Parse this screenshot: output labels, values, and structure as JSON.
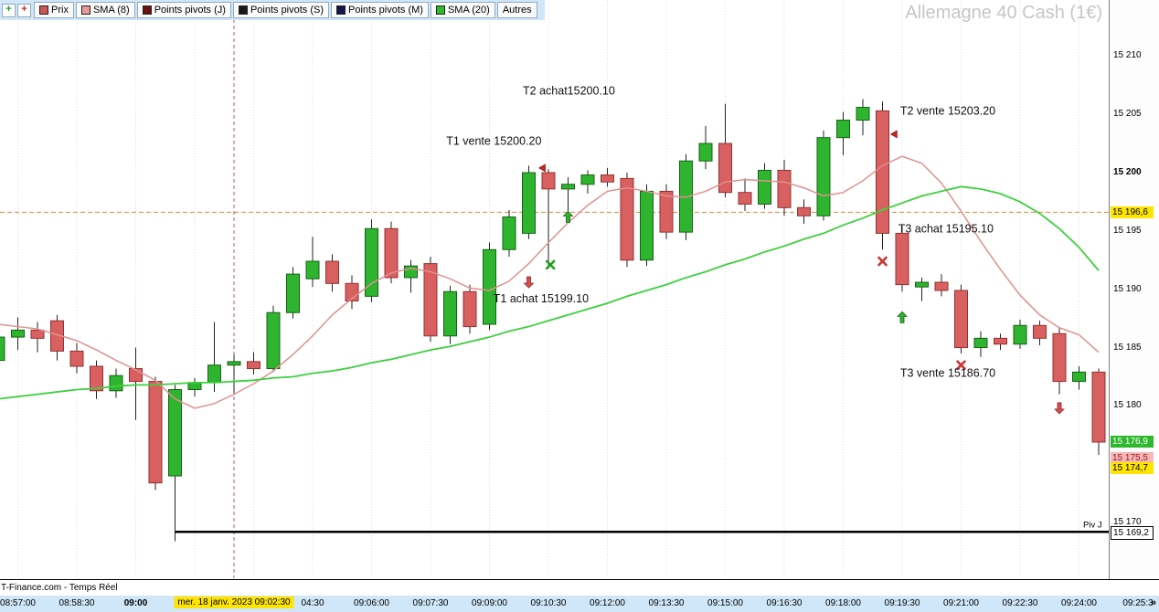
{
  "header": {
    "title": "Allemagne 40 Cash (1€)"
  },
  "toolbar": {
    "order_icons": [
      {
        "name": "buy-order-icon",
        "glyph": "+",
        "color": "#18a018"
      },
      {
        "name": "sell-order-icon",
        "glyph": "+",
        "color": "#cc2222"
      }
    ],
    "buttons": [
      {
        "label": "Prix",
        "swatch": "#cc5555"
      },
      {
        "label": "SMA (8)",
        "swatch": "#e79a9a"
      },
      {
        "label": "Points pivots (J)",
        "swatch": "#6b1111"
      },
      {
        "label": "Points pivots (S)",
        "swatch": "#1a1a1a"
      },
      {
        "label": "Points pivots (M)",
        "swatch": "#15154d"
      },
      {
        "label": "SMA (20)",
        "swatch": "#2dbb2d"
      },
      {
        "label": "Autres",
        "swatch": null
      }
    ]
  },
  "status_bar": {
    "text": "T-Finance.com - Temps Réel"
  },
  "time_axis": {
    "more": "»"
  },
  "colors": {
    "up": "#2eb42e",
    "up_border": "#156315",
    "down": "#d96060",
    "down_border": "#943030",
    "wick": "#222222",
    "sma8": "#e09090",
    "sma20": "#3ecf3e",
    "grid": "#dcdcdc",
    "cursor_line": "#cc5555",
    "level_line": "#dd8833",
    "pivot_line": "#000000",
    "axis_blue": "#cfe7f8",
    "highlight_yellow": "#ffe400"
  },
  "chart_data": {
    "type": "candlestick",
    "instrument": "Allemagne 40 Cash (1€)",
    "candle_interval": "00:00:30",
    "y_axis": {
      "visible_range": [
        15165.2,
        15214.8
      ]
    },
    "candles": [
      [
        "08:56:30",
        15183.9,
        15186.6,
        15183.3,
        15185.9
      ],
      [
        "08:57:00",
        15185.9,
        15187.6,
        15184.8,
        15186.5
      ],
      [
        "08:57:30",
        15186.5,
        15187.2,
        15184.6,
        15185.8
      ],
      [
        "08:58:00",
        15187.3,
        15187.8,
        15183.9,
        15184.7
      ],
      [
        "08:58:30",
        15184.7,
        15185.4,
        15182.8,
        15183.4
      ],
      [
        "08:59:00",
        15183.4,
        15183.9,
        15180.6,
        15181.3
      ],
      [
        "08:59:30",
        15181.3,
        15183.2,
        15180.7,
        15182.6
      ],
      [
        "09:00:00",
        15183.2,
        15185.0,
        15178.8,
        15182.1
      ],
      [
        "09:00:30",
        15182.1,
        15182.5,
        15172.8,
        15173.4
      ],
      [
        "09:01:00",
        15174.0,
        15181.8,
        15168.4,
        15181.4
      ],
      [
        "09:01:30",
        15181.4,
        15182.4,
        15180.8,
        15182.0
      ],
      [
        "09:02:00",
        15182.0,
        15187.2,
        15181.2,
        15183.5
      ],
      [
        "09:02:30",
        15183.5,
        15184.4,
        15181.1,
        15183.8
      ],
      [
        "09:03:00",
        15183.8,
        15184.6,
        15182.7,
        15183.2
      ],
      [
        "09:03:30",
        15183.2,
        15188.6,
        15182.9,
        15188.0
      ],
      [
        "09:04:00",
        15188.0,
        15191.9,
        15187.5,
        15191.3
      ],
      [
        "09:04:30",
        15190.9,
        15194.5,
        15190.2,
        15192.4
      ],
      [
        "09:05:00",
        15192.4,
        15193.0,
        15189.8,
        15190.5
      ],
      [
        "09:05:30",
        15190.5,
        15191.2,
        15188.3,
        15189.0
      ],
      [
        "09:06:00",
        15189.4,
        15196.0,
        15188.9,
        15195.2
      ],
      [
        "09:06:30",
        15195.2,
        15195.8,
        15190.5,
        15191.0
      ],
      [
        "09:07:00",
        15191.0,
        15192.5,
        15189.7,
        15192.0
      ],
      [
        "09:07:30",
        15192.2,
        15192.8,
        15185.5,
        15186.0
      ],
      [
        "09:08:00",
        15186.0,
        15190.3,
        15185.3,
        15189.8
      ],
      [
        "09:08:30",
        15189.8,
        15190.4,
        15186.2,
        15186.8
      ],
      [
        "09:09:00",
        15187.0,
        15194.0,
        15186.5,
        15193.4
      ],
      [
        "09:09:30",
        15193.4,
        15196.8,
        15192.8,
        15196.2
      ],
      [
        "09:10:00",
        15194.8,
        15200.6,
        15194.3,
        15200.0
      ],
      [
        "09:10:30",
        15200.0,
        15200.3,
        15191.8,
        15198.6
      ],
      [
        "09:11:00",
        15198.6,
        15199.6,
        15195.9,
        15199.0
      ],
      [
        "09:11:30",
        15199.0,
        15200.2,
        15198.2,
        15199.8
      ],
      [
        "09:12:00",
        15199.8,
        15200.4,
        15198.8,
        15199.2
      ],
      [
        "09:12:30",
        15199.5,
        15200.0,
        15191.9,
        15192.5
      ],
      [
        "09:13:00",
        15192.5,
        15199.0,
        15192.0,
        15198.4
      ],
      [
        "09:13:30",
        15198.4,
        15199.0,
        15194.3,
        15194.9
      ],
      [
        "09:14:00",
        15194.9,
        15201.6,
        15194.2,
        15201.0
      ],
      [
        "09:14:30",
        15201.0,
        15204.0,
        15200.3,
        15202.5
      ],
      [
        "09:15:00",
        15202.5,
        15205.9,
        15197.9,
        15198.3
      ],
      [
        "09:15:30",
        15198.3,
        15199.5,
        15196.7,
        15197.3
      ],
      [
        "09:16:00",
        15197.3,
        15200.8,
        15196.9,
        15200.2
      ],
      [
        "09:16:30",
        15200.2,
        15201.1,
        15196.3,
        15197.0
      ],
      [
        "09:17:00",
        15197.0,
        15197.7,
        15195.6,
        15196.3
      ],
      [
        "09:17:30",
        15196.3,
        15203.6,
        15195.9,
        15203.0
      ],
      [
        "09:18:00",
        15203.0,
        15205.2,
        15201.5,
        15204.5
      ],
      [
        "09:18:30",
        15204.5,
        15206.3,
        15203.2,
        15205.6
      ],
      [
        "09:19:00",
        15205.3,
        15206.1,
        15193.4,
        15194.8
      ],
      [
        "09:19:30",
        15194.8,
        15195.4,
        15189.8,
        15190.4
      ],
      [
        "09:20:00",
        15190.2,
        15191.0,
        15189.0,
        15190.6
      ],
      [
        "09:20:30",
        15190.6,
        15191.3,
        15189.4,
        15189.9
      ],
      [
        "09:21:00",
        15189.9,
        15190.4,
        15184.5,
        15185.0
      ],
      [
        "09:21:30",
        15185.0,
        15186.4,
        15184.2,
        15185.8
      ],
      [
        "09:22:00",
        15185.8,
        15186.2,
        15184.8,
        15185.3
      ],
      [
        "09:22:30",
        15185.3,
        15187.4,
        15184.9,
        15186.9
      ],
      [
        "09:23:00",
        15186.9,
        15187.3,
        15185.2,
        15185.8
      ],
      [
        "09:23:30",
        15186.2,
        15186.7,
        15181.0,
        15182.1
      ],
      [
        "09:24:00",
        15182.1,
        15183.4,
        15181.4,
        15182.9
      ],
      [
        "09:24:30",
        15182.9,
        15183.2,
        15175.8,
        15176.9
      ]
    ],
    "sma8": [
      15187.0,
      15186.8,
      15186.6,
      15186.1,
      15185.6,
      15184.8,
      15183.9,
      15183.1,
      15182.2,
      15180.6,
      15179.8,
      15180.2,
      15181.0,
      15181.9,
      15183.0,
      15184.4,
      15186.0,
      15187.8,
      15189.2,
      15190.5,
      15191.4,
      15191.8,
      15191.5,
      15190.9,
      15190.1,
      15189.9,
      15190.7,
      15192.2,
      15194.0,
      15195.7,
      15197.2,
      15198.4,
      15198.7,
      15198.4,
      15198.0,
      15197.9,
      15198.4,
      15199.2,
      15199.4,
      15199.3,
      15199.2,
      15198.7,
      15198.0,
      15198.3,
      15199.3,
      15200.6,
      15201.4,
      15200.8,
      15199.1,
      15196.7,
      15194.1,
      15191.7,
      15189.5,
      15187.8,
      15186.7,
      15186.1,
      15184.6
    ],
    "sma20": [
      15180.6,
      15180.8,
      15181.0,
      15181.2,
      15181.4,
      15181.5,
      15181.7,
      15181.8,
      15181.8,
      15181.9,
      15182.0,
      15182.0,
      15182.1,
      15182.2,
      15182.4,
      15182.5,
      15182.8,
      15183.0,
      15183.3,
      15183.7,
      15184.0,
      15184.4,
      15184.8,
      15185.1,
      15185.5,
      15185.9,
      15186.4,
      15186.8,
      15187.3,
      15187.8,
      15188.3,
      15188.8,
      15189.4,
      15189.9,
      15190.4,
      15191.0,
      15191.5,
      15192.1,
      15192.6,
      15193.2,
      15193.7,
      15194.3,
      15194.8,
      15195.5,
      15196.1,
      15196.8,
      15197.4,
      15198.0,
      15198.4,
      15198.8,
      15198.6,
      15198.2,
      15197.5,
      15196.5,
      15195.2,
      15193.6,
      15191.6
    ],
    "annotations": [
      {
        "text": "T2 achat15200.10",
        "idx": 26.7,
        "price": 15207.0
      },
      {
        "text": "T1 vente 15200.20",
        "idx": 22.8,
        "price": 15202.7
      },
      {
        "text": "T1 achat 15199.10",
        "idx": 25.2,
        "price": 15189.2
      },
      {
        "text": "T2 vente 15203.20",
        "idx": 45.9,
        "price": 15205.3
      },
      {
        "text": "T3 achat 15195.10",
        "idx": 45.8,
        "price": 15195.2
      },
      {
        "text": "T3 vente 15186.70",
        "idx": 45.9,
        "price": 15182.8
      }
    ],
    "markers": [
      {
        "type": "triangle-left",
        "color": "#cc2222",
        "stroke": "#7a1010",
        "idx": 27.7,
        "price": 15200.4
      },
      {
        "type": "arrow-down",
        "color": "#d05050",
        "stroke": "#9c2424",
        "idx": 27.0,
        "price": 15190.6
      },
      {
        "type": "x",
        "color": "#1f9e1f",
        "stroke": "#1f9e1f",
        "idx": 28.1,
        "price": 15192.1
      },
      {
        "type": "arrow-up",
        "color": "#2eb42e",
        "stroke": "#135f13",
        "idx": 29.0,
        "price": 15196.2
      },
      {
        "type": "triangle-left",
        "color": "#cc2222",
        "stroke": "#7a1010",
        "idx": 45.6,
        "price": 15203.3
      },
      {
        "type": "x",
        "color": "#cc3333",
        "stroke": "#cc3333",
        "idx": 45.0,
        "price": 15192.4
      },
      {
        "type": "arrow-up",
        "color": "#2eb42e",
        "stroke": "#135f13",
        "idx": 46.0,
        "price": 15187.6
      },
      {
        "type": "x",
        "color": "#cc3333",
        "stroke": "#cc3333",
        "idx": 49.0,
        "price": 15183.5
      },
      {
        "type": "arrow-down",
        "color": "#d05050",
        "stroke": "#9c2424",
        "idx": 54.0,
        "price": 15179.8
      }
    ],
    "pivot": {
      "label": "Piv J",
      "price": 15169.2,
      "start_idx": 9
    },
    "h_line": {
      "price": 15196.6
    },
    "cursor": {
      "idx": 12,
      "time": "09:02:30",
      "label": "mer. 18 janv. 2023 09:02:30"
    },
    "x_labels": [
      {
        "text": "08:57:00",
        "idx": 1
      },
      {
        "text": "08:58:30",
        "idx": 4
      },
      {
        "text": "09:00",
        "idx": 7,
        "bold": true
      },
      {
        "text": "04:30",
        "idx": 16
      },
      {
        "text": "09:06:00",
        "idx": 19
      },
      {
        "text": "09:07:30",
        "idx": 22
      },
      {
        "text": "09:09:00",
        "idx": 25
      },
      {
        "text": "09:10:30",
        "idx": 28
      },
      {
        "text": "09:12:00",
        "idx": 31
      },
      {
        "text": "09:13:30",
        "idx": 34
      },
      {
        "text": "09:15:00",
        "idx": 37
      },
      {
        "text": "09:16:30",
        "idx": 40
      },
      {
        "text": "09:18:00",
        "idx": 43
      },
      {
        "text": "09:19:30",
        "idx": 46
      },
      {
        "text": "09:21:00",
        "idx": 49
      },
      {
        "text": "09:22:30",
        "idx": 52
      },
      {
        "text": "09:24:00",
        "idx": 55
      },
      {
        "text": "09:25:3",
        "idx": 58
      }
    ],
    "y_ticks": [
      {
        "label": "15 210",
        "price": 15210
      },
      {
        "label": "15 205",
        "price": 15205
      },
      {
        "label": "15 200",
        "price": 15200,
        "bold": true
      },
      {
        "label": "15 195",
        "price": 15195
      },
      {
        "label": "15 190",
        "price": 15190
      },
      {
        "label": "15 185",
        "price": 15185
      },
      {
        "label": "15 180",
        "price": 15180
      },
      {
        "label": "15 170",
        "price": 15170
      }
    ],
    "y_boxes": [
      {
        "label": "15 196,6",
        "price": 15196.6,
        "bg": "#ffe400",
        "fg": "#000000"
      },
      {
        "label": "15 176,9",
        "price": 15176.9,
        "bg": "#2eb82e",
        "fg": "#ffffff"
      },
      {
        "label": "15 175,5",
        "price": 15175.5,
        "bg": "#f5b8b8",
        "fg": "#a01818"
      },
      {
        "label": "15 174,7",
        "price": 15174.7,
        "bg": "#ffe400",
        "fg": "#000000"
      },
      {
        "label": "15 169,2",
        "price": 15169.2,
        "bg": "#ffffff",
        "fg": "#000000",
        "border": true
      }
    ]
  }
}
